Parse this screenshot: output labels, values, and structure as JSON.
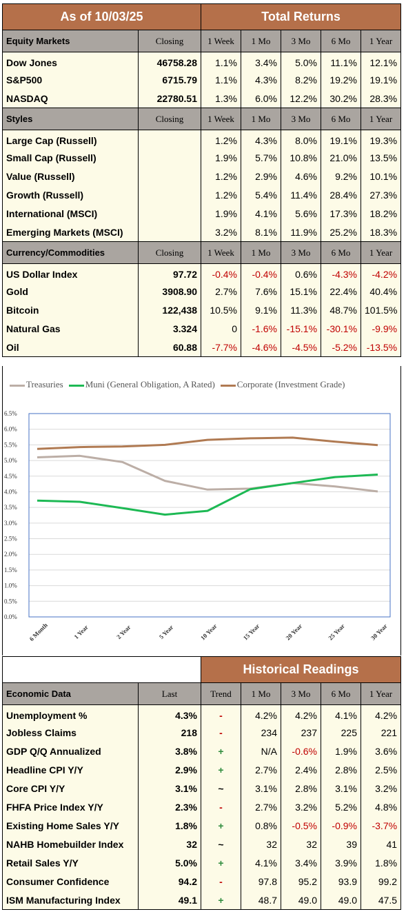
{
  "top_table": {
    "as_of_label": "As of  10/03/25",
    "total_returns_label": "Total Returns",
    "sections": [
      {
        "header": [
          "Equity Markets",
          "Closing",
          "1 Week",
          "1 Mo",
          "3 Mo",
          "6 Mo",
          "1 Year"
        ],
        "rows": [
          {
            "name": "Dow Jones",
            "closing": "46758.28",
            "w1": "1.1%",
            "m1": "3.4%",
            "m3": "5.0%",
            "m6": "11.1%",
            "y1": "12.1%"
          },
          {
            "name": "S&P500",
            "closing": "6715.79",
            "w1": "1.1%",
            "m1": "4.3%",
            "m3": "8.2%",
            "m6": "19.2%",
            "y1": "19.1%"
          },
          {
            "name": "NASDAQ",
            "closing": "22780.51",
            "w1": "1.3%",
            "m1": "6.0%",
            "m3": "12.2%",
            "m6": "30.2%",
            "y1": "28.3%"
          }
        ]
      },
      {
        "header": [
          "Styles",
          "Closing",
          "1 Week",
          "1 Mo",
          "3 Mo",
          "6 Mo",
          "1 Year"
        ],
        "rows": [
          {
            "name": "Large Cap (Russell)",
            "closing": "",
            "w1": "1.2%",
            "m1": "4.3%",
            "m3": "8.0%",
            "m6": "19.1%",
            "y1": "19.3%"
          },
          {
            "name": "Small Cap (Russell)",
            "closing": "",
            "w1": "1.9%",
            "m1": "5.7%",
            "m3": "10.8%",
            "m6": "21.0%",
            "y1": "13.5%"
          },
          {
            "name": "Value (Russell)",
            "closing": "",
            "w1": "1.2%",
            "m1": "2.9%",
            "m3": "4.6%",
            "m6": "9.2%",
            "y1": "10.1%"
          },
          {
            "name": "Growth (Russell)",
            "closing": "",
            "w1": "1.2%",
            "m1": "5.4%",
            "m3": "11.4%",
            "m6": "28.4%",
            "y1": "27.3%"
          },
          {
            "name": "International (MSCI)",
            "closing": "",
            "w1": "1.9%",
            "m1": "4.1%",
            "m3": "5.6%",
            "m6": "17.3%",
            "y1": "18.2%"
          },
          {
            "name": "Emerging Markets (MSCI)",
            "closing": "",
            "w1": "3.2%",
            "m1": "8.1%",
            "m3": "11.9%",
            "m6": "25.2%",
            "y1": "18.3%"
          }
        ]
      },
      {
        "header": [
          "Currency/Commodities",
          "Closing",
          "1 Week",
          "1 Mo",
          "3 Mo",
          "6 Mo",
          "1 Year"
        ],
        "rows": [
          {
            "name": "US Dollar Index",
            "closing": "97.72",
            "w1": "-0.4%",
            "m1": "-0.4%",
            "m3": "0.6%",
            "m6": "-4.3%",
            "y1": "-4.2%"
          },
          {
            "name": "Gold",
            "closing": "3908.90",
            "w1": "2.7%",
            "m1": "7.6%",
            "m3": "15.1%",
            "m6": "22.4%",
            "y1": "40.4%"
          },
          {
            "name": "Bitcoin",
            "closing": "122,438",
            "w1": "10.5%",
            "m1": "9.1%",
            "m3": "11.3%",
            "m6": "48.7%",
            "y1": "101.5%"
          },
          {
            "name": "Natural Gas",
            "closing": "3.324",
            "w1": "0",
            "m1": "-1.6%",
            "m3": "-15.1%",
            "m6": "-30.1%",
            "y1": "-9.9%"
          },
          {
            "name": "Oil",
            "closing": "60.88",
            "w1": "-7.7%",
            "m1": "-4.6%",
            "m3": "-4.5%",
            "m6": "-5.2%",
            "y1": "-13.5%"
          }
        ]
      }
    ]
  },
  "chart_data": {
    "type": "line",
    "title": "",
    "x": [
      "6 Month",
      "1 Year",
      "2 Year",
      "5 Year",
      "10 Year",
      "15 Year",
      "20 Year",
      "25 Year",
      "30 Year"
    ],
    "y_ticks": [
      "0.0%",
      "0.5%",
      "1.0%",
      "1.5%",
      "2.0%",
      "2.5%",
      "3.0%",
      "3.5%",
      "4.0%",
      "4.5%",
      "5.0%",
      "5.5%",
      "6.0%",
      "6.5%"
    ],
    "ylim": [
      0,
      6.5
    ],
    "grid": true,
    "legend_position": "top",
    "series": [
      {
        "name": "Treasuries",
        "color": "#bcaea6",
        "values": [
          5.1,
          5.15,
          4.95,
          4.35,
          4.07,
          4.1,
          4.28,
          4.17,
          4.01
        ]
      },
      {
        "name": "Muni (General Obligation, A Rated)",
        "color": "#1db954",
        "values": [
          3.72,
          3.68,
          3.48,
          3.27,
          3.39,
          4.08,
          4.28,
          4.47,
          4.55
        ]
      },
      {
        "name": "Corporate (Investment Grade)",
        "color": "#b07a52",
        "values": [
          5.37,
          5.43,
          5.45,
          5.5,
          5.66,
          5.71,
          5.73,
          5.6,
          5.49
        ]
      }
    ]
  },
  "bottom_table": {
    "historical_label": "Historical Readings",
    "header": [
      "Economic Data",
      "Last",
      "Trend",
      "1 Mo",
      "3 Mo",
      "6 Mo",
      "1 Year"
    ],
    "rows": [
      {
        "name": "Unemployment %",
        "last": "4.3%",
        "trend": "-",
        "m1": "4.2%",
        "m3": "4.2%",
        "m6": "4.1%",
        "y1": "4.2%"
      },
      {
        "name": "Jobless Claims",
        "last": "218",
        "trend": "-",
        "m1": "234",
        "m3": "237",
        "m6": "225",
        "y1": "221"
      },
      {
        "name": "GDP Q/Q Annualized",
        "last": "3.8%",
        "trend": "+",
        "m1": "N/A",
        "m3": "-0.6%",
        "m6": "1.9%",
        "y1": "3.6%"
      },
      {
        "name": "Headline CPI Y/Y",
        "last": "2.9%",
        "trend": "+",
        "m1": "2.7%",
        "m3": "2.4%",
        "m6": "2.8%",
        "y1": "2.5%"
      },
      {
        "name": "Core CPI Y/Y",
        "last": "3.1%",
        "trend": "~",
        "m1": "3.1%",
        "m3": "2.8%",
        "m6": "3.1%",
        "y1": "3.2%"
      },
      {
        "name": "FHFA Price Index Y/Y",
        "last": "2.3%",
        "trend": "-",
        "m1": "2.7%",
        "m3": "3.2%",
        "m6": "5.2%",
        "y1": "4.8%"
      },
      {
        "name": "Existing Home Sales Y/Y",
        "last": "1.8%",
        "trend": "+",
        "m1": "0.8%",
        "m3": "-0.5%",
        "m6": "-0.9%",
        "y1": "-3.7%"
      },
      {
        "name": "NAHB Homebuilder Index",
        "last": "32",
        "trend": "~",
        "m1": "32",
        "m3": "32",
        "m6": "39",
        "y1": "41"
      },
      {
        "name": "Retail Sales Y/Y",
        "last": "5.0%",
        "trend": "+",
        "m1": "4.1%",
        "m3": "3.4%",
        "m6": "3.9%",
        "y1": "1.8%"
      },
      {
        "name": "Consumer Confidence",
        "last": "94.2",
        "trend": "-",
        "m1": "97.8",
        "m3": "95.2",
        "m6": "93.9",
        "y1": "99.2"
      },
      {
        "name": "ISM Manufacturing Index",
        "last": "49.1",
        "trend": "+",
        "m1": "48.7",
        "m3": "49.0",
        "m6": "49.0",
        "y1": "47.5"
      }
    ]
  }
}
